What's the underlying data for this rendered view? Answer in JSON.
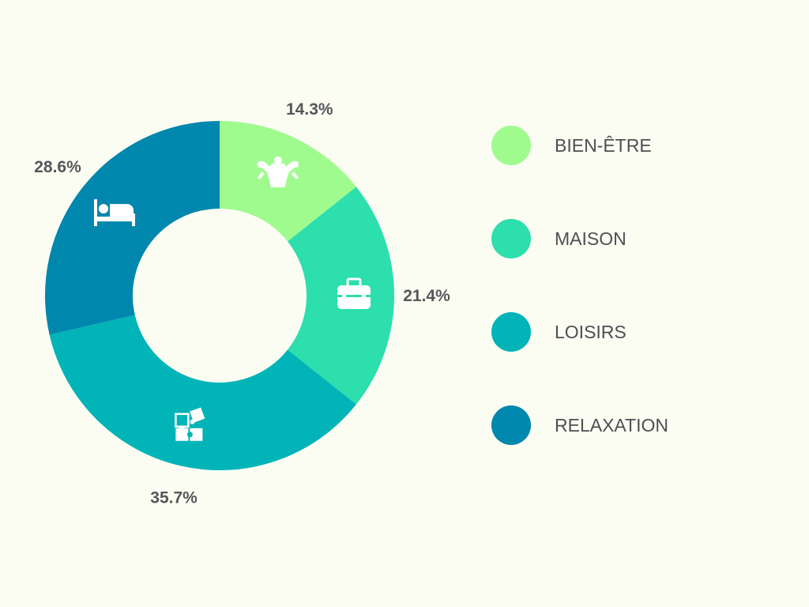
{
  "chart_data": {
    "type": "pie",
    "title": "",
    "categories": [
      "BIEN-ÊTRE",
      "MAISON",
      "LOISIRS",
      "RELAXATION"
    ],
    "values": [
      14.3,
      21.4,
      35.7,
      28.6
    ],
    "value_labels": [
      "14.3%",
      "21.4%",
      "35.7%",
      "28.6%"
    ],
    "colors": [
      "#a0fb8f",
      "#2cdfad",
      "#00b4b8",
      "#0087ad"
    ],
    "icons": [
      "muscle-icon",
      "toolbox-icon",
      "puzzle-icon",
      "bed-icon"
    ],
    "legend_position": "right",
    "donut": true
  }
}
